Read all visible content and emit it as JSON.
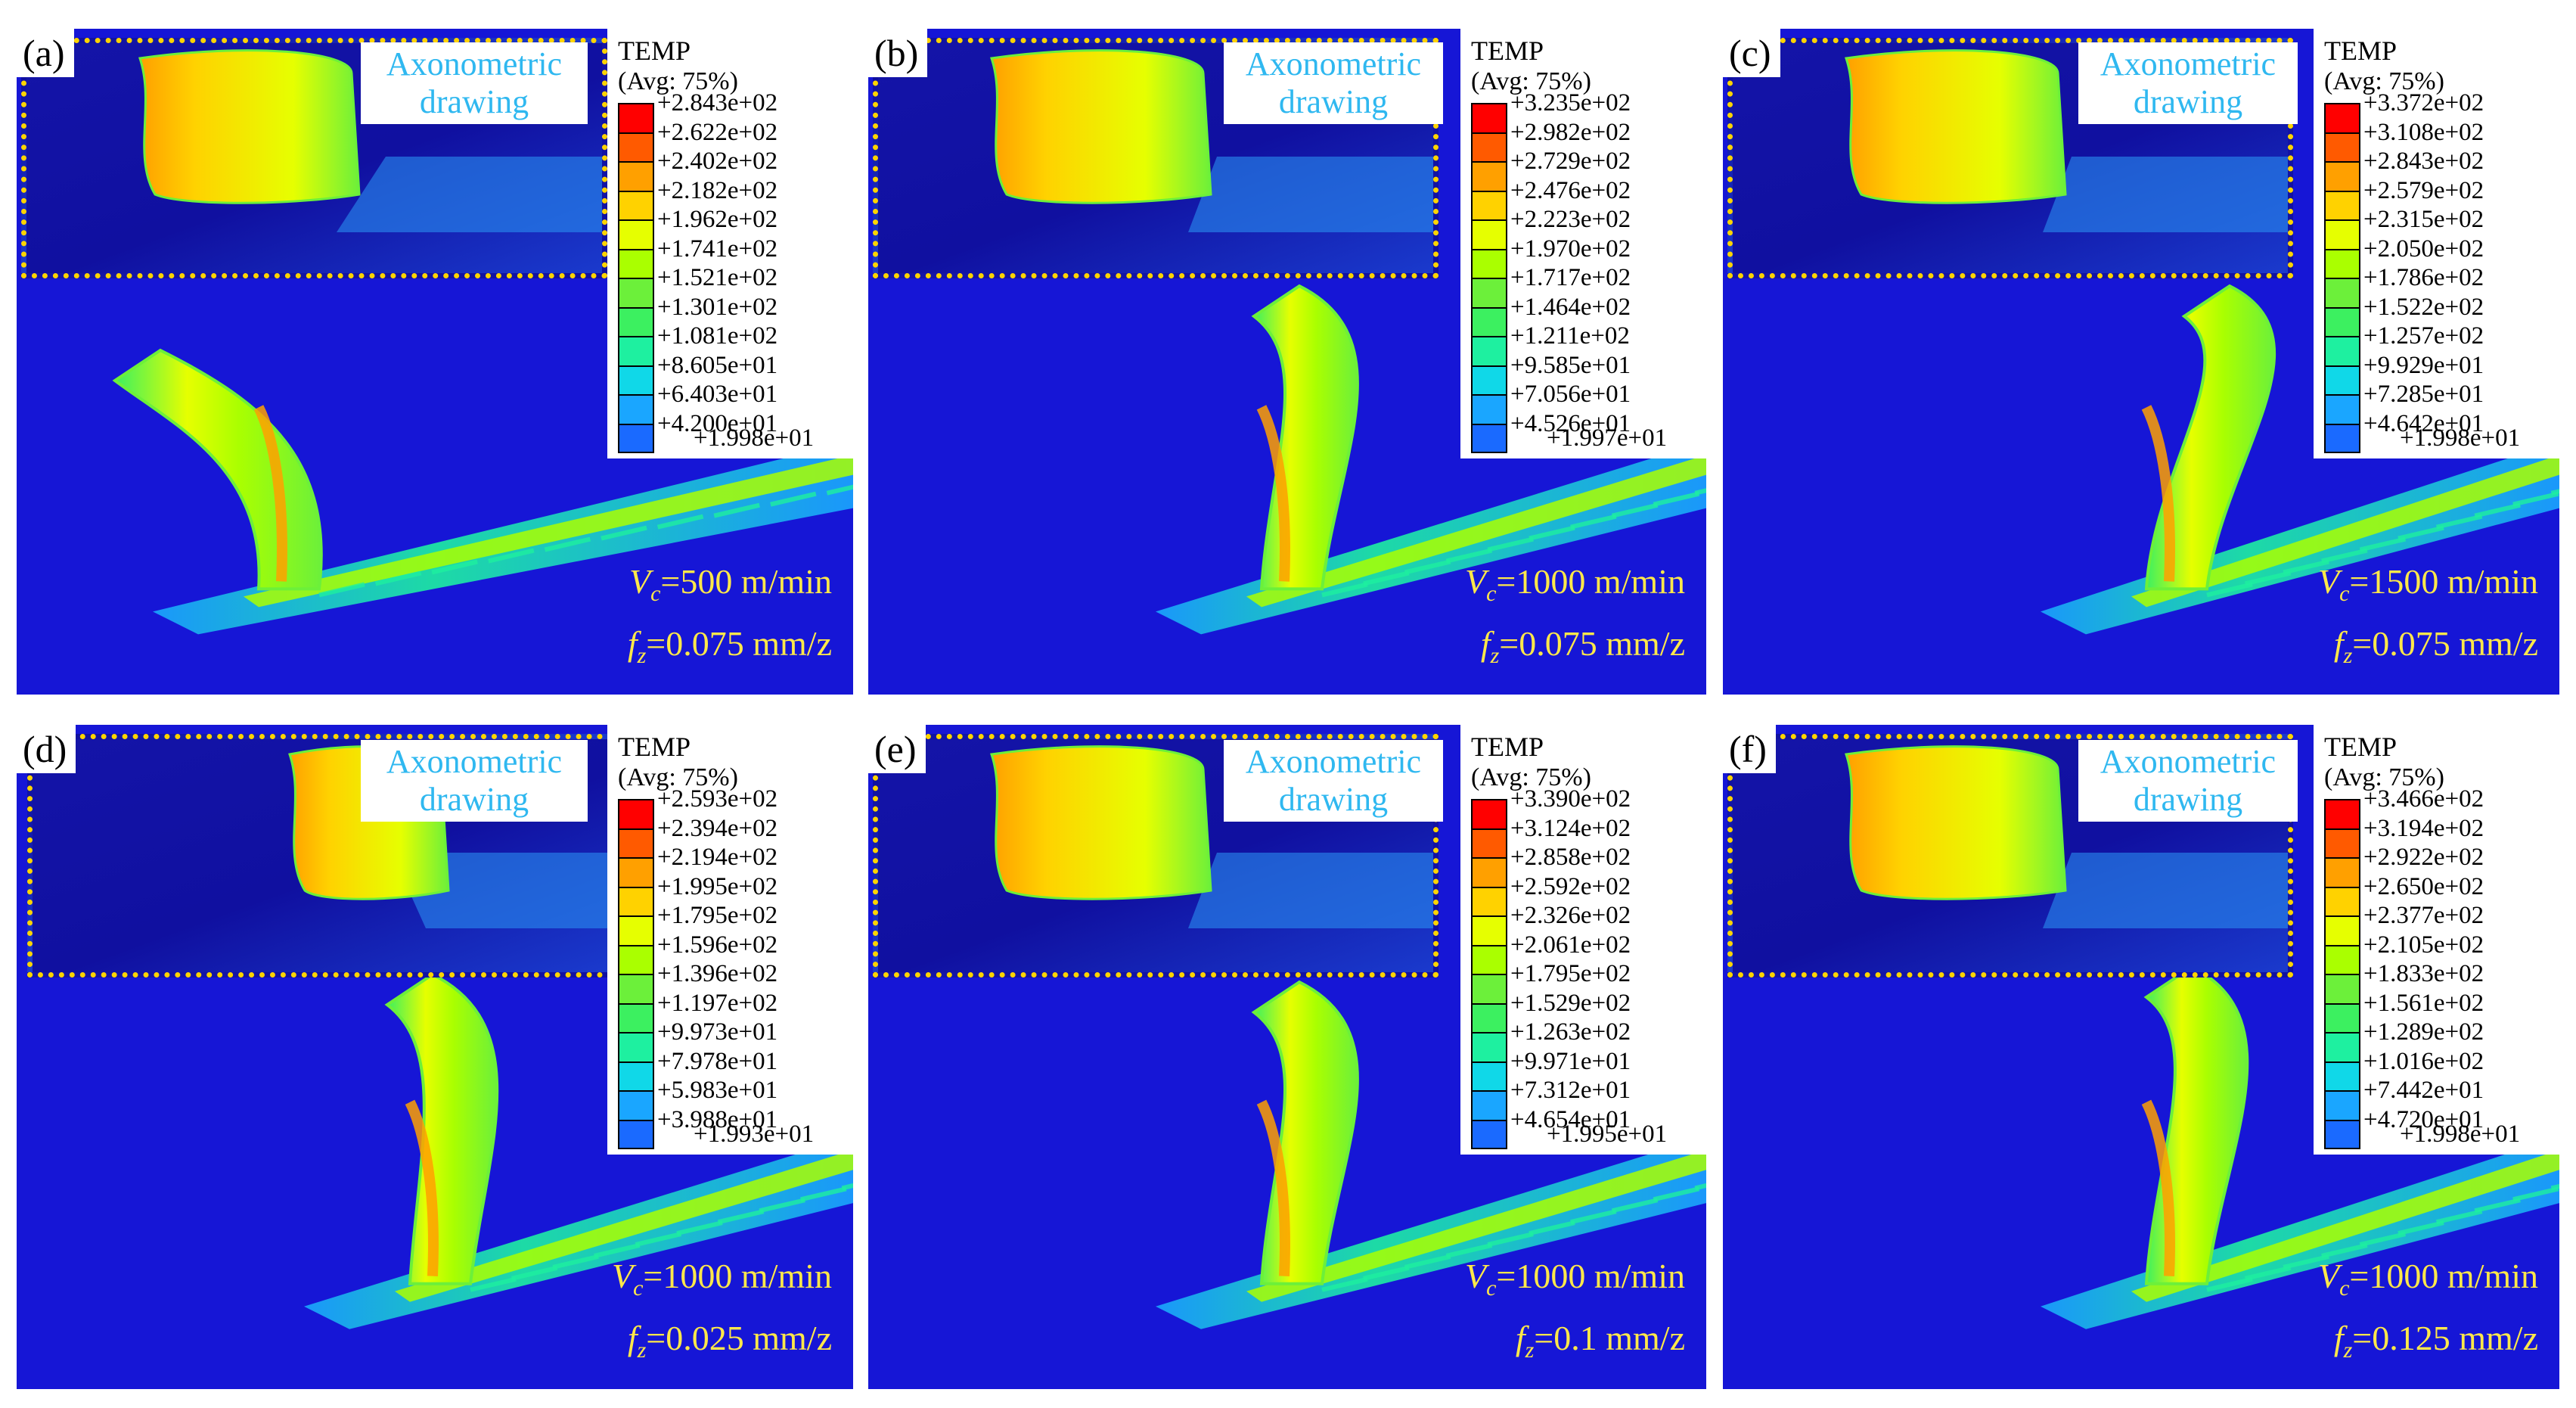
{
  "legend_title": "TEMP",
  "legend_subtitle": "(Avg: 75%)",
  "inset_label": "Axonometric drawing",
  "colors": {
    "background_blue": "#1616d6",
    "inset_border": "#ffd400",
    "inset_label": "#2fb8f0",
    "condition_text": "#ffe84a",
    "scale": [
      "#ff0000",
      "#ff5a00",
      "#ffa000",
      "#ffd200",
      "#e6ff00",
      "#aaff00",
      "#6cf03a",
      "#3cf060",
      "#1ef0a0",
      "#10d8e8",
      "#1aa6ff",
      "#1a6aff",
      "#0000ff"
    ]
  },
  "panels": [
    {
      "label": "(a)",
      "vc": "=500 m/min",
      "fz": "=0.075 mm/z",
      "legend": [
        "+2.843e+02",
        "+2.622e+02",
        "+2.402e+02",
        "+2.182e+02",
        "+1.962e+02",
        "+1.741e+02",
        "+1.521e+02",
        "+1.301e+02",
        "+1.081e+02",
        "+8.605e+01",
        "+6.403e+01",
        "+4.200e+01",
        "+1.998e+01"
      ]
    },
    {
      "label": "(b)",
      "vc": "=1000 m/min",
      "fz": "=0.075 mm/z",
      "legend": [
        "+3.235e+02",
        "+2.982e+02",
        "+2.729e+02",
        "+2.476e+02",
        "+2.223e+02",
        "+1.970e+02",
        "+1.717e+02",
        "+1.464e+02",
        "+1.211e+02",
        "+9.585e+01",
        "+7.056e+01",
        "+4.526e+01",
        "+1.997e+01"
      ]
    },
    {
      "label": "(c)",
      "vc": "=1500 m/min",
      "fz": "=0.075 mm/z",
      "legend": [
        "+3.372e+02",
        "+3.108e+02",
        "+2.843e+02",
        "+2.579e+02",
        "+2.315e+02",
        "+2.050e+02",
        "+1.786e+02",
        "+1.522e+02",
        "+1.257e+02",
        "+9.929e+01",
        "+7.285e+01",
        "+4.642e+01",
        "+1.998e+01"
      ]
    },
    {
      "label": "(d)",
      "vc": "=1000 m/min",
      "fz": "=0.025 mm/z",
      "legend": [
        "+2.593e+02",
        "+2.394e+02",
        "+2.194e+02",
        "+1.995e+02",
        "+1.795e+02",
        "+1.596e+02",
        "+1.396e+02",
        "+1.197e+02",
        "+9.973e+01",
        "+7.978e+01",
        "+5.983e+01",
        "+3.988e+01",
        "+1.993e+01"
      ]
    },
    {
      "label": "(e)",
      "vc": "=1000 m/min",
      "fz": "=0.1 mm/z",
      "legend": [
        "+3.390e+02",
        "+3.124e+02",
        "+2.858e+02",
        "+2.592e+02",
        "+2.326e+02",
        "+2.061e+02",
        "+1.795e+02",
        "+1.529e+02",
        "+1.263e+02",
        "+9.971e+01",
        "+7.312e+01",
        "+4.654e+01",
        "+1.995e+01"
      ]
    },
    {
      "label": "(f)",
      "vc": "=1000 m/min",
      "fz": "=0.125 mm/z",
      "legend": [
        "+3.466e+02",
        "+3.194e+02",
        "+2.922e+02",
        "+2.650e+02",
        "+2.377e+02",
        "+2.105e+02",
        "+1.833e+02",
        "+1.561e+02",
        "+1.289e+02",
        "+1.016e+02",
        "+7.442e+01",
        "+4.720e+01",
        "+1.998e+01"
      ]
    }
  ]
}
